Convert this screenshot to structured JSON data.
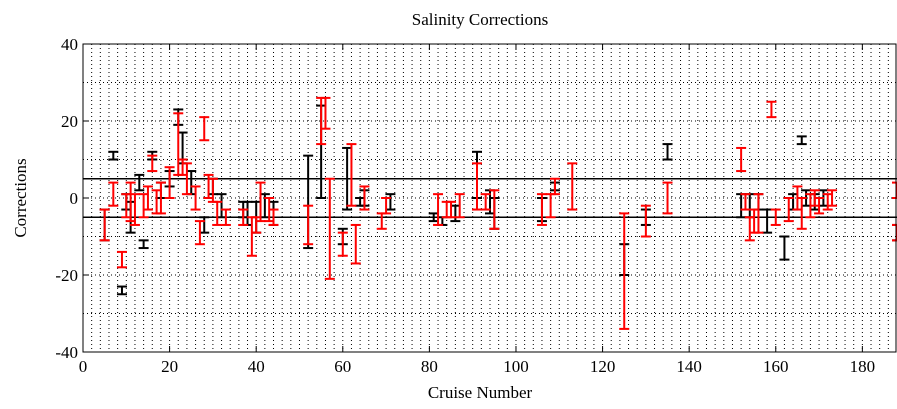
{
  "chart_data": {
    "type": "errorbar",
    "title": "Salinity Corrections",
    "xlabel": "Cruise Number",
    "ylabel": "Corrections",
    "xlim": [
      0,
      188
    ],
    "ylim": [
      -40,
      40
    ],
    "xticks": [
      0,
      20,
      40,
      60,
      80,
      100,
      120,
      140,
      160,
      180
    ],
    "yticks": [
      -40,
      -20,
      0,
      20,
      40
    ],
    "grid": true,
    "x_minor_step": 2,
    "y_minor_step": 10,
    "hlines": [
      5,
      -5
    ],
    "series": [
      {
        "name": "black",
        "color": "#000000",
        "x": [
          5,
          7,
          9,
          10,
          11,
          13,
          14,
          16,
          18,
          20,
          22,
          23,
          25,
          28,
          30,
          32,
          37,
          38,
          40,
          42,
          44,
          52,
          55,
          60,
          61,
          64,
          65,
          71,
          81,
          83,
          86,
          91,
          94,
          95,
          106,
          109,
          125,
          130,
          135,
          152,
          154,
          156,
          158,
          162,
          164,
          166,
          167,
          169,
          171,
          188
        ],
        "values": [
          -7,
          11,
          -24,
          -1,
          -5,
          4,
          -12,
          11,
          2,
          5,
          21,
          13,
          4,
          -7,
          3,
          -2,
          -3,
          -4,
          -5,
          -2,
          -4,
          -1,
          12,
          -10,
          5,
          -1,
          0,
          -1,
          -5,
          -6,
          -4,
          6,
          -1,
          -4,
          -3,
          3,
          -16,
          -5,
          12,
          -2,
          -2,
          -1,
          -6,
          -13,
          -1,
          15,
          0,
          -1,
          0,
          -9
        ],
        "errors": [
          4,
          1,
          1,
          2,
          4,
          2,
          1,
          1,
          2,
          2,
          2,
          4,
          3,
          2,
          2,
          3,
          2,
          3,
          4,
          3,
          3,
          12,
          12,
          2,
          8,
          1,
          2,
          2,
          1,
          1,
          2,
          6,
          3,
          4,
          3,
          1,
          4,
          2,
          2,
          3,
          3,
          2,
          3,
          3,
          2,
          1,
          2,
          2,
          2,
          2
        ]
      },
      {
        "name": "red",
        "color": "#ff0000",
        "x": [
          5,
          7,
          9,
          10,
          11,
          12,
          14,
          15,
          16,
          17,
          18,
          20,
          22,
          23,
          24,
          26,
          27,
          28,
          29,
          30,
          31,
          33,
          37,
          39,
          40,
          41,
          43,
          44,
          52,
          55,
          56,
          57,
          60,
          62,
          63,
          65,
          69,
          70,
          82,
          84,
          85,
          87,
          91,
          93,
          95,
          106,
          108,
          109,
          113,
          125,
          130,
          135,
          152,
          153,
          154,
          155,
          156,
          159,
          160,
          163,
          165,
          166,
          168,
          169,
          170,
          172,
          173,
          188,
          188
        ],
        "values": [
          -7,
          1,
          -16,
          -2,
          -1,
          -3,
          -2,
          0,
          9,
          -1,
          0,
          4,
          14,
          8,
          5,
          0,
          -9,
          18,
          3,
          2,
          -4,
          -5,
          -5,
          -10,
          -7,
          -1,
          -3,
          -5,
          -7,
          20,
          22,
          -8,
          -12,
          6,
          -12,
          0,
          -6,
          -2,
          -3,
          -3,
          -3,
          -2,
          3,
          -1,
          -3,
          -3,
          -2,
          3,
          3,
          -19,
          -6,
          0,
          10,
          -1,
          -8,
          -6,
          -4,
          23,
          -5,
          -3,
          0,
          -4,
          -2,
          0,
          -2,
          -1,
          0,
          2,
          -9
        ],
        "errors": [
          4,
          3,
          2,
          3,
          5,
          4,
          3,
          3,
          2,
          3,
          4,
          4,
          8,
          2,
          4,
          3,
          3,
          3,
          3,
          3,
          3,
          2,
          2,
          5,
          2,
          5,
          3,
          2,
          5,
          6,
          4,
          13,
          3,
          8,
          5,
          3,
          2,
          2,
          4,
          2,
          2,
          3,
          6,
          2,
          5,
          4,
          3,
          2,
          6,
          15,
          4,
          4,
          3,
          2,
          3,
          3,
          5,
          2,
          2,
          3,
          3,
          4,
          3,
          2,
          2,
          2,
          2,
          2,
          2
        ]
      }
    ]
  }
}
